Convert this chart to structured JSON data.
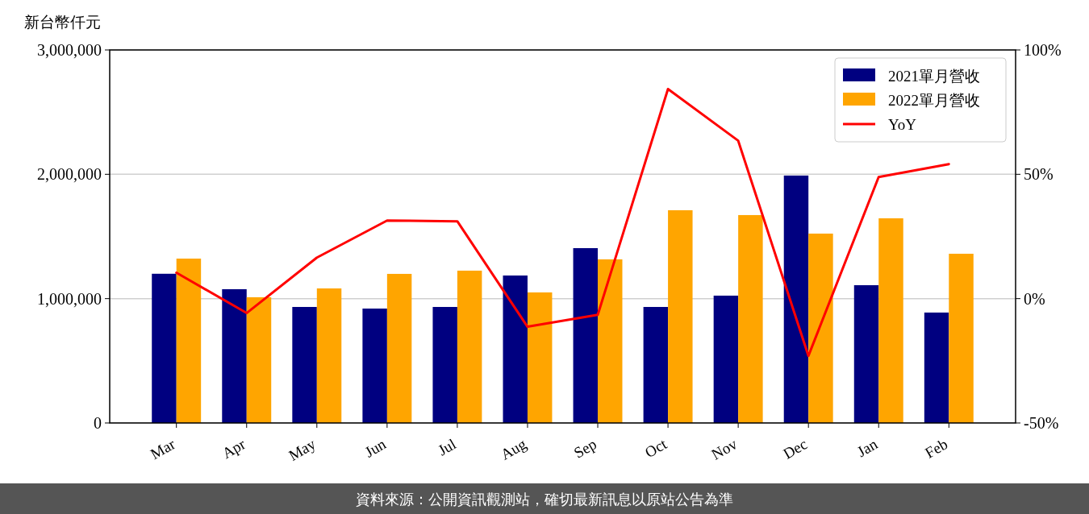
{
  "chart_data": {
    "type": "bar",
    "ylabel": "新台幣仟元",
    "categories": [
      "Mar",
      "Apr",
      "May",
      "Jun",
      "Jul",
      "Aug",
      "Sep",
      "Oct",
      "Nov",
      "Dec",
      "Jan",
      "Feb"
    ],
    "series": [
      {
        "name": "2021單月營收",
        "color": "#000080",
        "values": [
          1200000,
          1076000,
          933000,
          920000,
          933000,
          1186000,
          1406000,
          933000,
          1024000,
          1990000,
          1108000,
          888000
        ]
      },
      {
        "name": "2022單月營收",
        "color": "#ffa500",
        "values": [
          1322000,
          1011000,
          1082000,
          1199000,
          1225000,
          1050000,
          1316000,
          1711000,
          1672000,
          1523000,
          1646000,
          1361000
        ]
      },
      {
        "name": "YoY",
        "type": "line",
        "axis": "y2",
        "color": "#ff0000",
        "values": [
          10.4,
          -5.8,
          16.5,
          31.4,
          31.1,
          -11.3,
          -6.5,
          84.3,
          63.5,
          -23,
          48.9,
          54.1
        ]
      }
    ],
    "ylim": [
      0,
      3000000
    ],
    "yticks": [
      {
        "value": 0,
        "label": "0"
      },
      {
        "value": 1000000,
        "label": "1,000,000"
      },
      {
        "value": 2000000,
        "label": "2,000,000"
      },
      {
        "value": 3000000,
        "label": "3,000,000"
      }
    ],
    "y2lim": [
      -50,
      100
    ],
    "y2ticks": [
      {
        "value": -50,
        "label": "-50%"
      },
      {
        "value": 0,
        "label": "0%"
      },
      {
        "value": 50,
        "label": "50%"
      },
      {
        "value": 100,
        "label": "100%"
      }
    ],
    "grid": "y",
    "legend": "top right",
    "annotations": [
      "資料來源：公開資訊觀測站，確切最新訊息以原站公告為準"
    ]
  }
}
